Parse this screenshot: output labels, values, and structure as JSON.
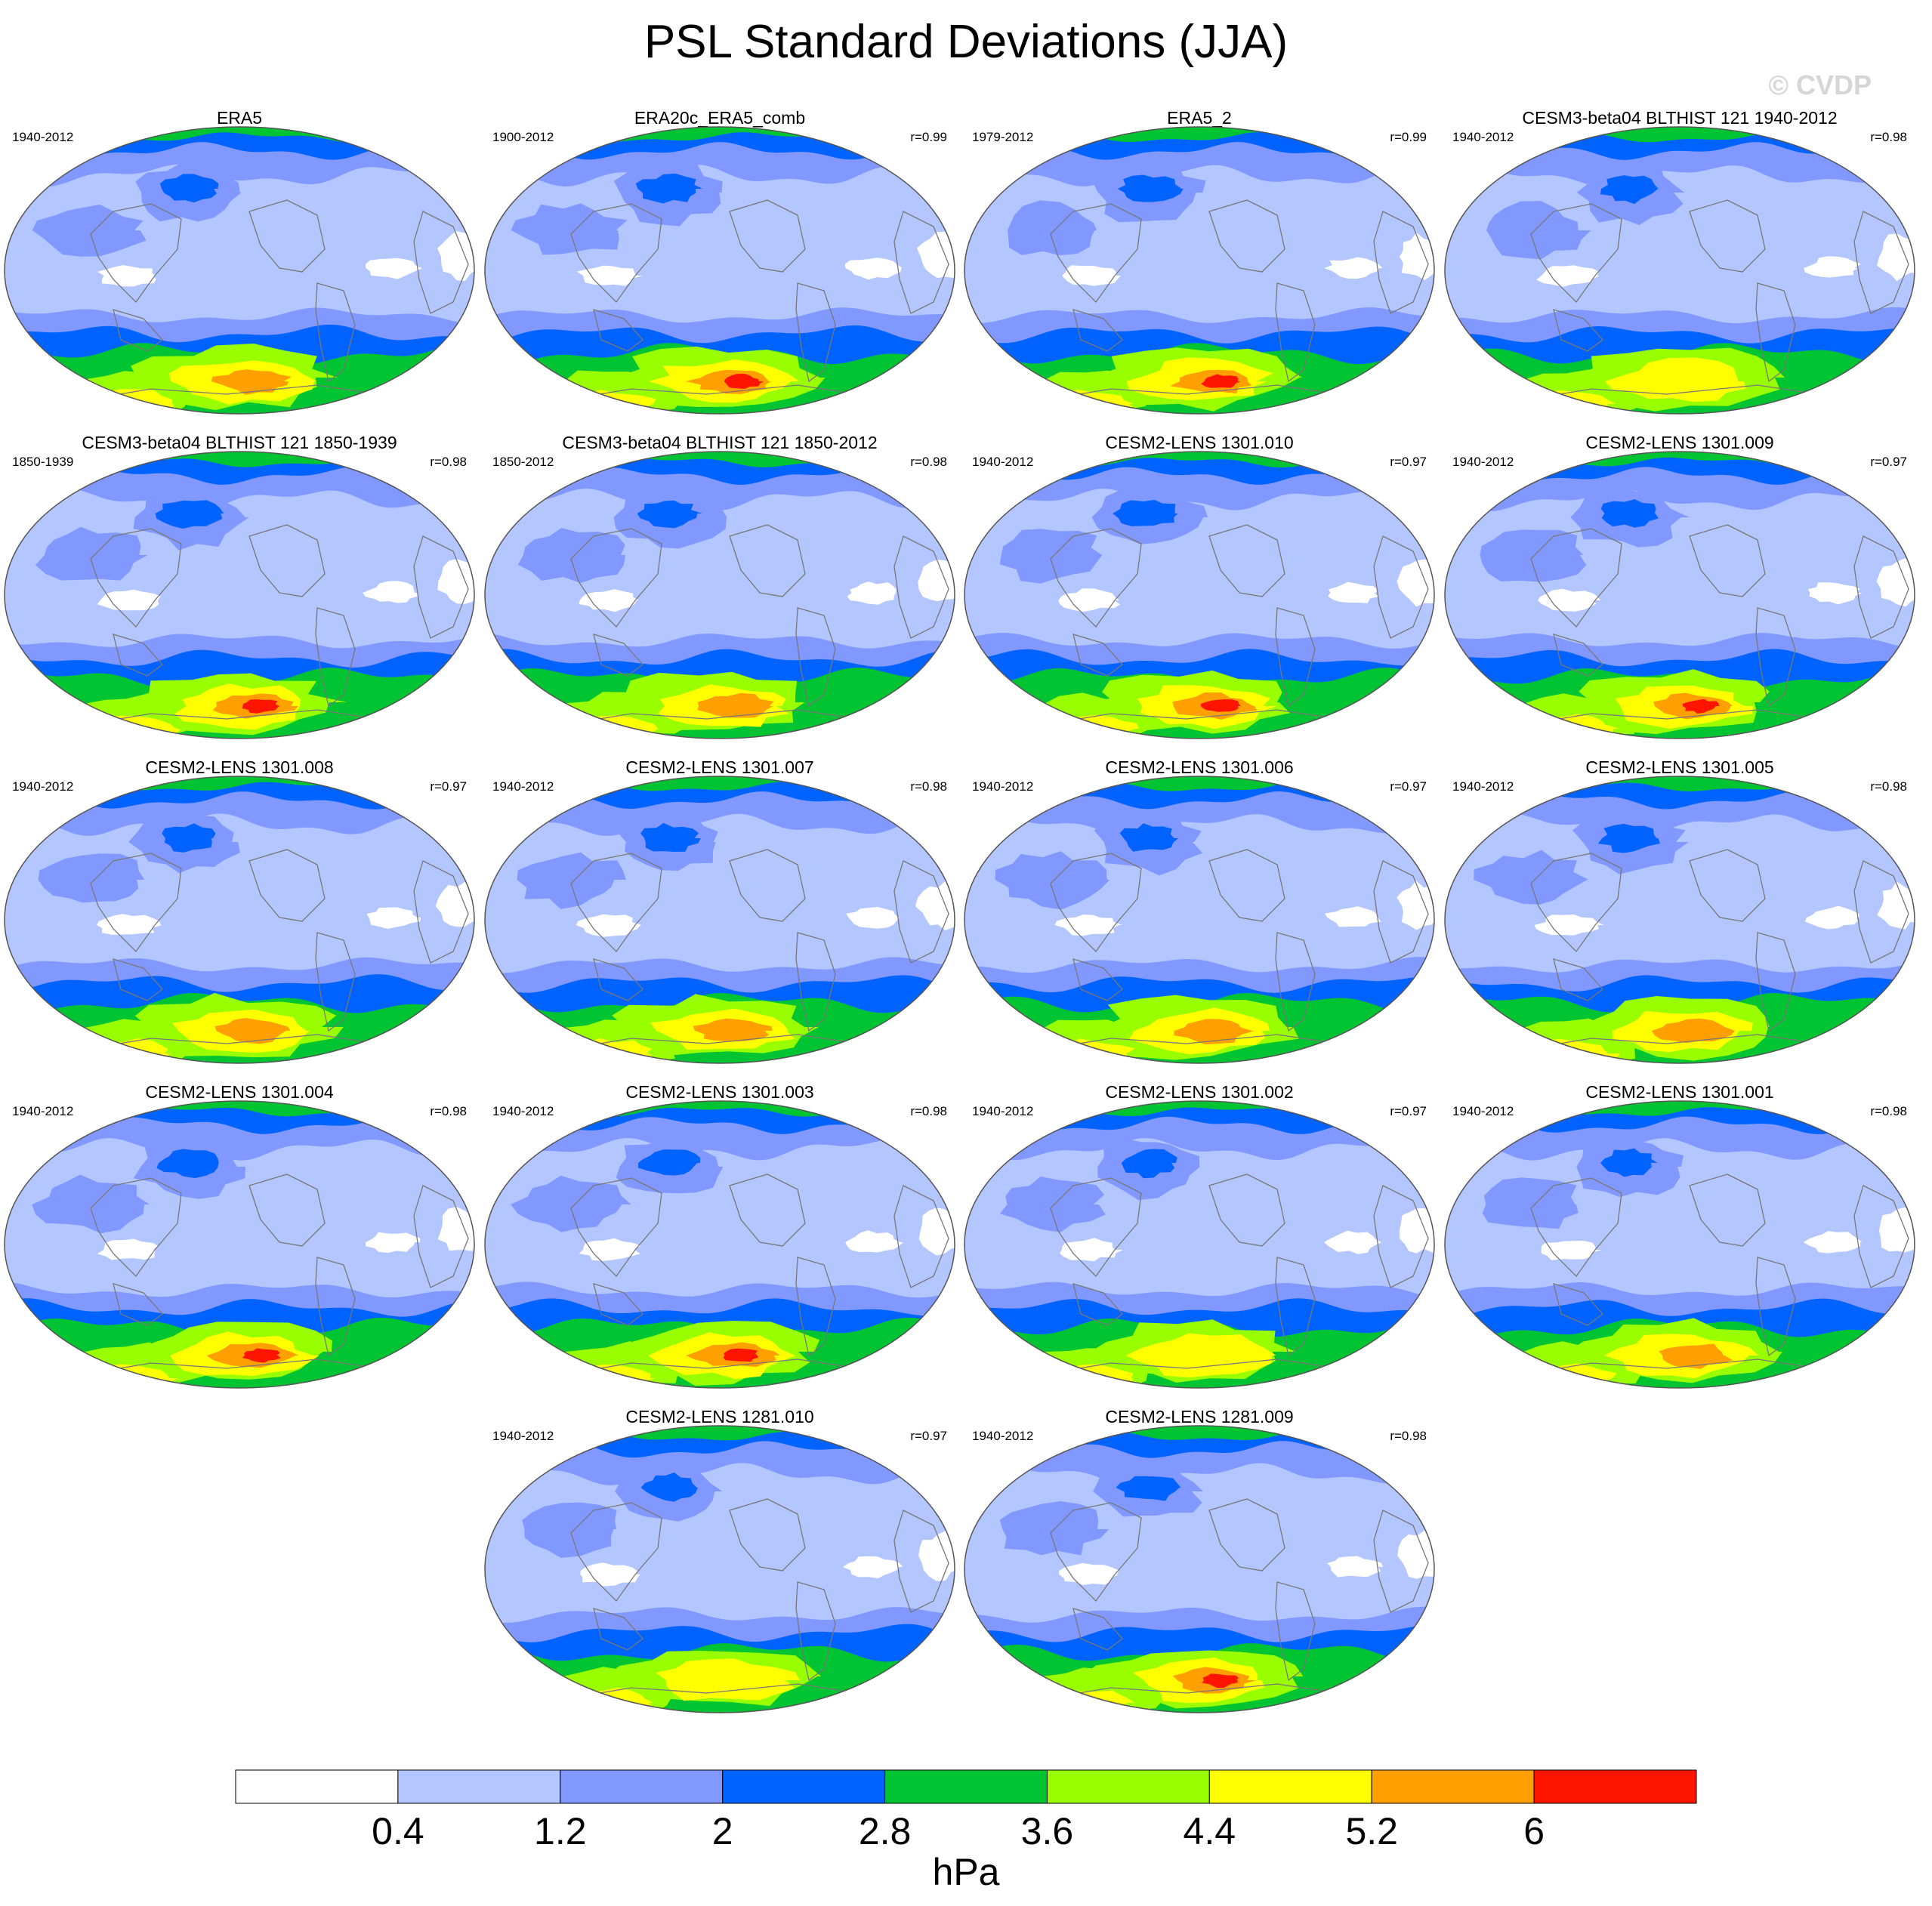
{
  "title": "PSL Standard Deviations (JJA)",
  "watermark": "© CVDP",
  "colors": {
    "levels": [
      "#ffffff",
      "#b4c6ff",
      "#8098ff",
      "#0063ff",
      "#00c431",
      "#99ff00",
      "#ffff00",
      "#ffa000",
      "#ff1400"
    ],
    "coast": "#777777",
    "outline": "#555555"
  },
  "panels": [
    {
      "title": "ERA5",
      "period": "1940-2012",
      "r": "",
      "intensity": 0.5,
      "south_max_level": 7
    },
    {
      "title": "ERA20c_ERA5_comb",
      "period": "1900-2012",
      "r": "r=0.99",
      "intensity": 0.8,
      "south_max_level": 8
    },
    {
      "title": "ERA5_2",
      "period": "1979-2012",
      "r": "r=0.99",
      "intensity": 0.7,
      "south_max_level": 8
    },
    {
      "title": "CESM3-beta04 BLTHIST 121 1940-2012",
      "period": "1940-2012",
      "r": "r=0.98",
      "intensity": 0.35,
      "south_max_level": 6
    },
    {
      "title": "CESM3-beta04 BLTHIST 121 1850-1939",
      "period": "1850-1939",
      "r": "r=0.98",
      "intensity": 0.75,
      "south_max_level": 8
    },
    {
      "title": "CESM3-beta04 BLTHIST 121 1850-2012",
      "period": "1850-2012",
      "r": "r=0.98",
      "intensity": 0.55,
      "south_max_level": 7
    },
    {
      "title": "CESM2-LENS 1301.010",
      "period": "1940-2012",
      "r": "r=0.97",
      "intensity": 0.8,
      "south_max_level": 8
    },
    {
      "title": "CESM2-LENS 1301.009",
      "period": "1940-2012",
      "r": "r=0.97",
      "intensity": 0.65,
      "south_max_level": 8
    },
    {
      "title": "CESM2-LENS 1301.008",
      "period": "1940-2012",
      "r": "r=0.97",
      "intensity": 0.45,
      "south_max_level": 7
    },
    {
      "title": "CESM2-LENS 1301.007",
      "period": "1940-2012",
      "r": "r=0.98",
      "intensity": 0.5,
      "south_max_level": 7
    },
    {
      "title": "CESM2-LENS 1301.006",
      "period": "1940-2012",
      "r": "r=0.97",
      "intensity": 0.45,
      "south_max_level": 7
    },
    {
      "title": "CESM2-LENS 1301.005",
      "period": "1940-2012",
      "r": "r=0.98",
      "intensity": 0.55,
      "south_max_level": 7
    },
    {
      "title": "CESM2-LENS 1301.004",
      "period": "1940-2012",
      "r": "r=0.98",
      "intensity": 0.75,
      "south_max_level": 8
    },
    {
      "title": "CESM2-LENS 1301.003",
      "period": "1940-2012",
      "r": "r=0.98",
      "intensity": 0.75,
      "south_max_level": 8
    },
    {
      "title": "CESM2-LENS 1301.002",
      "period": "1940-2012",
      "r": "r=0.97",
      "intensity": 0.35,
      "south_max_level": 6
    },
    {
      "title": "CESM2-LENS 1301.001",
      "period": "1940-2012",
      "r": "r=0.98",
      "intensity": 0.4,
      "south_max_level": 7
    },
    {
      "title": "CESM2-LENS 1281.010",
      "period": "1940-2012",
      "r": "r=0.97",
      "intensity": 0.3,
      "south_max_level": 6
    },
    {
      "title": "CESM2-LENS 1281.009",
      "period": "1940-2012",
      "r": "r=0.98",
      "intensity": 0.6,
      "south_max_level": 8
    }
  ],
  "colorbar": {
    "tick_labels": [
      "0.4",
      "1.2",
      "2",
      "2.8",
      "3.6",
      "4.4",
      "5.2",
      "6"
    ],
    "units": "hPa"
  }
}
